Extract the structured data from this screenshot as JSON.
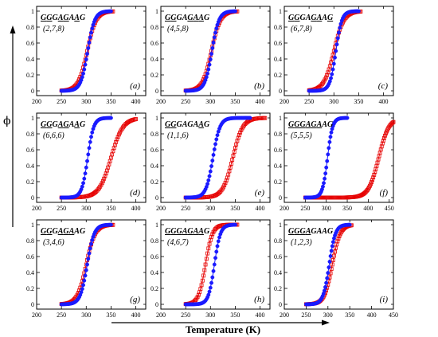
{
  "figure": {
    "xlabel": "Temperature (K)",
    "ylabel": "ϕ",
    "colors": {
      "circles": "#1a1aff",
      "squares": "#e60000"
    }
  },
  "chart_data": [
    {
      "type": "scatter",
      "panel": "(a)",
      "sequence": "GGGAGAAG",
      "underlined": [
        0,
        1,
        3,
        4,
        6
      ],
      "triple": "(2,7,8)",
      "xlim": [
        200,
        420
      ],
      "ylim": [
        0,
        1
      ],
      "xticks": [
        200,
        250,
        300,
        350,
        400
      ],
      "yticks": [
        0,
        0.2,
        0.4,
        0.6,
        0.8,
        1
      ],
      "series": [
        {
          "marker": "circle",
          "tm": 303,
          "width": 7,
          "xmin": 250,
          "xmax": 350
        },
        {
          "marker": "square",
          "tm": 302,
          "width": 9,
          "xmin": 250,
          "xmax": 355
        }
      ]
    },
    {
      "type": "scatter",
      "panel": "(b)",
      "sequence": "GGGAGAAG",
      "underlined": [
        0,
        1,
        4,
        5,
        6
      ],
      "triple": "(4,5,8)",
      "xlim": [
        200,
        420
      ],
      "ylim": [
        0,
        1
      ],
      "xticks": [
        200,
        250,
        300,
        350,
        400
      ],
      "yticks": [
        0,
        0.2,
        0.4,
        0.6,
        0.8,
        1
      ],
      "series": [
        {
          "marker": "circle",
          "tm": 303,
          "width": 7,
          "xmin": 250,
          "xmax": 350
        },
        {
          "marker": "square",
          "tm": 302,
          "width": 9,
          "xmin": 250,
          "xmax": 355
        }
      ]
    },
    {
      "type": "scatter",
      "panel": "(c)",
      "sequence": "GGGAGAAG",
      "underlined": [
        0,
        1,
        4,
        5,
        7
      ],
      "triple": "(6,7,8)",
      "xlim": [
        200,
        420
      ],
      "ylim": [
        0,
        1
      ],
      "xticks": [
        200,
        250,
        300,
        350,
        400
      ],
      "yticks": [
        0,
        0.2,
        0.4,
        0.6,
        0.8,
        1
      ],
      "series": [
        {
          "marker": "circle",
          "tm": 304,
          "width": 6,
          "xmin": 250,
          "xmax": 350
        },
        {
          "marker": "square",
          "tm": 300,
          "width": 10,
          "xmin": 250,
          "xmax": 355
        }
      ]
    },
    {
      "type": "scatter",
      "panel": "(d)",
      "sequence": "GGGAGAAG",
      "underlined": [
        0,
        1,
        3,
        4,
        6
      ],
      "triple": "(6,6,6)",
      "xlim": [
        200,
        420
      ],
      "ylim": [
        0,
        1
      ],
      "xticks": [
        200,
        250,
        300,
        350,
        400
      ],
      "yticks": [
        0,
        0.2,
        0.4,
        0.6,
        0.8,
        1
      ],
      "series": [
        {
          "marker": "circle",
          "tm": 303,
          "width": 6,
          "xmin": 250,
          "xmax": 350
        },
        {
          "marker": "square",
          "tm": 350,
          "width": 12,
          "xmin": 250,
          "xmax": 400
        }
      ]
    },
    {
      "type": "scatter",
      "panel": "(e)",
      "sequence": "GGGAGAAG",
      "underlined": [
        0,
        1,
        6
      ],
      "triple": "(1,1,6)",
      "xlim": [
        200,
        420
      ],
      "ylim": [
        0,
        1
      ],
      "xticks": [
        200,
        250,
        300,
        350,
        400
      ],
      "yticks": [
        0,
        0.2,
        0.4,
        0.6,
        0.8,
        1
      ],
      "series": [
        {
          "marker": "circle",
          "tm": 305,
          "width": 7,
          "xmin": 250,
          "xmax": 380
        },
        {
          "marker": "square",
          "tm": 345,
          "width": 10,
          "xmin": 250,
          "xmax": 410
        }
      ]
    },
    {
      "type": "scatter",
      "panel": "(f)",
      "sequence": "GGGAGAAG",
      "underlined": [
        0,
        1,
        2,
        3,
        4,
        5
      ],
      "triple": "(5,5,5)",
      "xlim": [
        200,
        460
      ],
      "ylim": [
        0,
        1
      ],
      "xticks": [
        200,
        250,
        300,
        350,
        400,
        450
      ],
      "yticks": [
        0,
        0.2,
        0.4,
        0.6,
        0.8,
        1
      ],
      "series": [
        {
          "marker": "circle",
          "tm": 303,
          "width": 6,
          "xmin": 250,
          "xmax": 350
        },
        {
          "marker": "square",
          "tm": 425,
          "width": 12,
          "xmin": 250,
          "xmax": 460
        }
      ]
    },
    {
      "type": "scatter",
      "panel": "(g)",
      "sequence": "GGGAGAAG",
      "underlined": [
        0,
        1,
        3,
        4,
        5
      ],
      "triple": "(3,4,6)",
      "xlim": [
        200,
        420
      ],
      "ylim": [
        0,
        1
      ],
      "xticks": [
        200,
        250,
        300,
        350,
        400
      ],
      "yticks": [
        0,
        0.2,
        0.4,
        0.6,
        0.8,
        1
      ],
      "series": [
        {
          "marker": "circle",
          "tm": 302,
          "width": 7,
          "xmin": 250,
          "xmax": 350
        },
        {
          "marker": "square",
          "tm": 300,
          "width": 9,
          "xmin": 250,
          "xmax": 355
        }
      ]
    },
    {
      "type": "scatter",
      "panel": "(h)",
      "sequence": "GGGAGAAG",
      "underlined": [
        0,
        1,
        2,
        3,
        4,
        5,
        6
      ],
      "triple": "(4,6,7)",
      "xlim": [
        200,
        420
      ],
      "ylim": [
        0,
        1
      ],
      "xticks": [
        200,
        250,
        300,
        350,
        400
      ],
      "yticks": [
        0,
        0.2,
        0.4,
        0.6,
        0.8,
        1
      ],
      "series": [
        {
          "marker": "circle",
          "tm": 308,
          "width": 6,
          "xmin": 250,
          "xmax": 350
        },
        {
          "marker": "square",
          "tm": 290,
          "width": 7,
          "xmin": 250,
          "xmax": 355
        }
      ]
    },
    {
      "type": "scatter",
      "panel": "(i)",
      "sequence": "GGGAGAAG",
      "underlined": [
        0,
        1,
        2,
        3
      ],
      "triple": "(1,2,3)",
      "xlim": [
        200,
        450
      ],
      "ylim": [
        0,
        1
      ],
      "xticks": [
        200,
        250,
        300,
        350,
        400,
        450
      ],
      "yticks": [
        0,
        0.2,
        0.4,
        0.6,
        0.8,
        1
      ],
      "series": [
        {
          "marker": "circle",
          "tm": 303,
          "width": 7,
          "xmin": 250,
          "xmax": 350
        },
        {
          "marker": "square",
          "tm": 310,
          "width": 9,
          "xmin": 250,
          "xmax": 355
        }
      ]
    }
  ]
}
